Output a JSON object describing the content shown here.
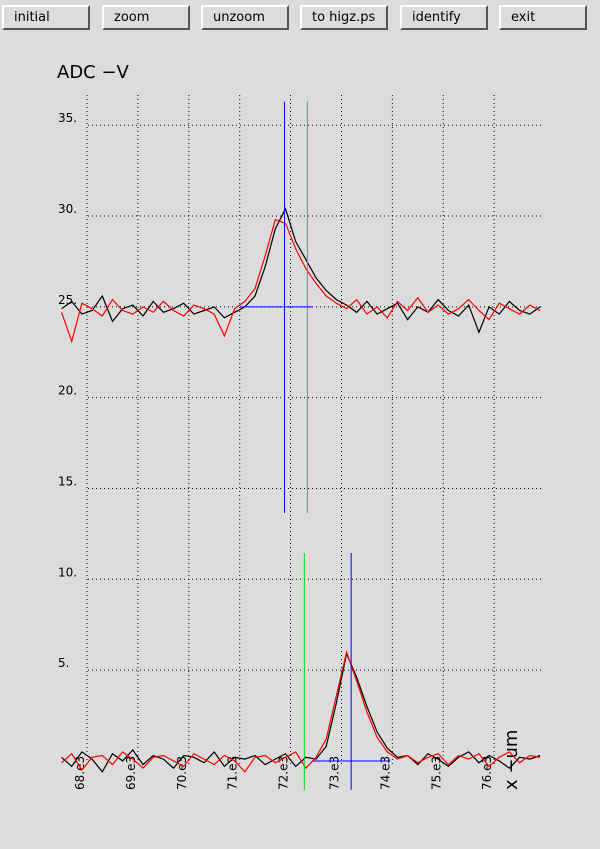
{
  "buttons": [
    "initial",
    "zoom",
    "unzoom",
    "to higz.ps",
    "identify",
    "exit"
  ],
  "chart_data": {
    "type": "line",
    "title": "ADC  −V",
    "x_label": "x  −um",
    "grid": true,
    "xlim": [
      67430,
      76940
    ],
    "ylim": [
      -1.6,
      36.5
    ],
    "xticks": [
      {
        "value": 68000,
        "label": "68.e3"
      },
      {
        "value": 69000,
        "label": "69.e3"
      },
      {
        "value": 70000,
        "label": "70.e3"
      },
      {
        "value": 71000,
        "label": "71.e3"
      },
      {
        "value": 72000,
        "label": "72.e3"
      },
      {
        "value": 73000,
        "label": "73.e3"
      },
      {
        "value": 74000,
        "label": "74.e3"
      },
      {
        "value": 75000,
        "label": "75.e3"
      },
      {
        "value": 76000,
        "label": "76.e3"
      }
    ],
    "yticks": [
      {
        "value": 5,
        "label": "5."
      },
      {
        "value": 10,
        "label": "10."
      },
      {
        "value": 15,
        "label": "15."
      },
      {
        "value": 20,
        "label": "20."
      },
      {
        "value": 25,
        "label": "25."
      },
      {
        "value": 30,
        "label": "30."
      },
      {
        "value": 35,
        "label": "35."
      }
    ],
    "x": [
      67500,
      67700,
      67900,
      68100,
      68300,
      68500,
      68700,
      68900,
      69100,
      69300,
      69500,
      69700,
      69900,
      70100,
      70300,
      70500,
      70700,
      70900,
      71100,
      71300,
      71500,
      71700,
      71900,
      72100,
      72300,
      72500,
      72700,
      72900,
      73100,
      73300,
      73500,
      73700,
      73900,
      74100,
      74300,
      74500,
      74700,
      74900,
      75100,
      75300,
      75500,
      75700,
      75900,
      76100,
      76300,
      76500,
      76700,
      76900
    ],
    "series": [
      {
        "color": "#000000",
        "values": [
          24.9,
          25.3,
          24.6,
          24.8,
          25.6,
          24.2,
          24.9,
          25.1,
          24.5,
          25.3,
          24.7,
          24.9,
          25.2,
          24.6,
          24.8,
          25.0,
          24.4,
          24.7,
          25.0,
          25.6,
          27.2,
          29.3,
          30.4,
          28.6,
          27.6,
          26.6,
          25.9,
          25.4,
          25.1,
          24.7,
          25.3,
          24.6,
          24.9,
          25.2,
          24.3,
          25.0,
          24.7,
          25.4,
          24.8,
          24.5,
          25.1,
          23.6,
          25.0,
          24.6,
          25.3,
          24.8,
          24.6,
          25.0
        ]
      },
      {
        "color": "#ff0000",
        "values": [
          24.7,
          23.1,
          25.2,
          24.9,
          24.5,
          25.4,
          24.8,
          24.6,
          25.0,
          24.7,
          25.3,
          24.8,
          24.5,
          25.1,
          24.9,
          24.6,
          23.4,
          24.9,
          25.3,
          26.0,
          27.8,
          29.8,
          29.6,
          28.2,
          27.1,
          26.3,
          25.6,
          25.2,
          24.9,
          25.4,
          24.6,
          25.0,
          24.4,
          25.3,
          24.8,
          25.5,
          24.7,
          25.1,
          24.6,
          24.9,
          25.4,
          24.8,
          24.3,
          25.2,
          24.9,
          24.6,
          25.1,
          24.8
        ]
      },
      {
        "color": "#000000",
        "values": [
          0.2,
          -0.3,
          0.5,
          0.1,
          -0.6,
          0.4,
          0.0,
          0.6,
          -0.2,
          0.3,
          0.1,
          -0.4,
          0.3,
          0.2,
          -0.1,
          0.5,
          -0.3,
          0.2,
          0.1,
          0.3,
          -0.2,
          0.1,
          0.4,
          -0.3,
          0.2,
          0.1,
          0.8,
          3.2,
          5.9,
          4.6,
          3.0,
          1.6,
          0.7,
          0.2,
          0.3,
          -0.2,
          0.4,
          0.1,
          -0.3,
          0.2,
          0.5,
          -0.1,
          0.3,
          0.0,
          -0.4,
          0.2,
          0.1,
          0.3
        ]
      },
      {
        "color": "#ff0000",
        "values": [
          -0.1,
          0.4,
          -0.5,
          0.2,
          0.3,
          -0.2,
          0.5,
          0.1,
          -0.4,
          0.2,
          0.3,
          0.0,
          -0.3,
          0.4,
          0.1,
          -0.2,
          0.3,
          0.0,
          -0.6,
          0.2,
          0.3,
          -0.1,
          0.2,
          0.5,
          -0.4,
          0.2,
          1.2,
          3.6,
          6.0,
          4.4,
          2.7,
          1.3,
          0.5,
          0.1,
          0.3,
          -0.1,
          0.2,
          0.4,
          -0.2,
          0.3,
          0.1,
          0.4,
          -0.3,
          0.2,
          0.5,
          -0.1,
          0.3,
          0.2
        ]
      }
    ],
    "vlines": [
      {
        "x": 71880,
        "y0": 13.65,
        "y1": 36.3,
        "color": "#0000ff"
      },
      {
        "x": 72330,
        "y0": 13.65,
        "y1": 36.3,
        "color": "#00dd00"
      },
      {
        "x": 72270,
        "y0": -1.6,
        "y1": 11.45,
        "color": "#00dd00"
      },
      {
        "x": 73190,
        "y0": -1.6,
        "y1": 11.45,
        "color": "#0000ff"
      }
    ],
    "hlines": [
      {
        "y": 25.0,
        "x0": 71010,
        "x1": 72440,
        "color": "#0000ff"
      },
      {
        "y": 0,
        "x0": 72440,
        "x1": 73960,
        "color": "#0000ff"
      }
    ]
  }
}
